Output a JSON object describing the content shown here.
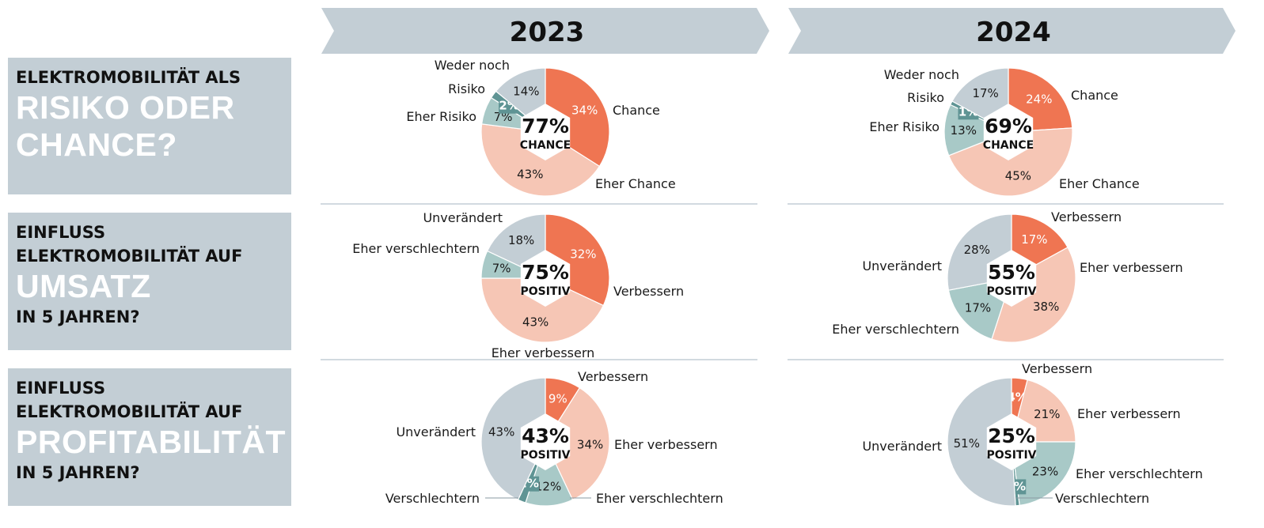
{
  "rows": [
    {
      "line1": "ELEKTROMOBILITÄT ALS",
      "big1": "RISIKO ODER",
      "big2": "CHANCE?"
    },
    {
      "line1": "EINFLUSS",
      "line2": "ELEKTROMOBILITÄT AUF",
      "big": "UMSATZ",
      "line3": "IN 5 JAHREN?"
    },
    {
      "line1": "EINFLUSS",
      "line2": "ELEKTROMOBILITÄT AUF",
      "big": "PROFITABILITÄT",
      "line3": "IN 5 JAHREN?"
    }
  ],
  "colors": {
    "header_band": "#c3ced5",
    "row_box": "#c3ced5",
    "divider": "#c3ced5",
    "strong_positive": "#ef7552",
    "weak_positive": "#f6c6b5",
    "neutral": "#c3ced5",
    "weak_negative": "#a8c9c7",
    "strong_negative": "#5f9494"
  },
  "chart_data": [
    {
      "type": "pie",
      "year": "2023",
      "topic": "Risiko oder Chance",
      "center_value": "77%",
      "center_label": "CHANCE",
      "slices": [
        {
          "label": "Chance",
          "value": 34,
          "value_label": "34%",
          "color": "#ef7552"
        },
        {
          "label": "Eher Chance",
          "value": 43,
          "value_label": "43%",
          "color": "#f6c6b5"
        },
        {
          "label": "Eher Risiko",
          "value": 7,
          "value_label": "7%",
          "color": "#a8c9c7"
        },
        {
          "label": "Risiko",
          "value": 2,
          "value_label": "2%",
          "color": "#5f9494"
        },
        {
          "label": "Weder noch",
          "value": 14,
          "value_label": "14%",
          "color": "#c3ced5"
        }
      ]
    },
    {
      "type": "pie",
      "year": "2024",
      "topic": "Risiko oder Chance",
      "center_value": "69%",
      "center_label": "CHANCE",
      "slices": [
        {
          "label": "Chance",
          "value": 24,
          "value_label": "24%",
          "color": "#ef7552"
        },
        {
          "label": "Eher Chance",
          "value": 45,
          "value_label": "45%",
          "color": "#f6c6b5"
        },
        {
          "label": "Eher Risiko",
          "value": 13,
          "value_label": "13%",
          "color": "#a8c9c7"
        },
        {
          "label": "Risiko",
          "value": 1,
          "value_label": "1%",
          "color": "#5f9494"
        },
        {
          "label": "Weder noch",
          "value": 17,
          "value_label": "17%",
          "color": "#c3ced5"
        }
      ]
    },
    {
      "type": "pie",
      "year": "2023",
      "topic": "Umsatz",
      "center_value": "75%",
      "center_label": "POSITIV",
      "slices": [
        {
          "label": "Verbessern",
          "value": 32,
          "value_label": "32%",
          "color": "#ef7552"
        },
        {
          "label": "Eher verbessern",
          "value": 43,
          "value_label": "43%",
          "color": "#f6c6b5"
        },
        {
          "label": "Eher verschlechtern",
          "value": 7,
          "value_label": "7%",
          "color": "#a8c9c7"
        },
        {
          "label": "Unverändert",
          "value": 18,
          "value_label": "18%",
          "color": "#c3ced5"
        }
      ]
    },
    {
      "type": "pie",
      "year": "2024",
      "topic": "Umsatz",
      "center_value": "55%",
      "center_label": "POSITIV",
      "slices": [
        {
          "label": "Verbessern",
          "value": 17,
          "value_label": "17%",
          "color": "#ef7552"
        },
        {
          "label": "Eher verbessern",
          "value": 38,
          "value_label": "38%",
          "color": "#f6c6b5"
        },
        {
          "label": "Eher verschlechtern",
          "value": 17,
          "value_label": "17%",
          "color": "#a8c9c7"
        },
        {
          "label": "Unverändert",
          "value": 28,
          "value_label": "28%",
          "color": "#c3ced5"
        }
      ]
    },
    {
      "type": "pie",
      "year": "2023",
      "topic": "Profitabilität",
      "center_value": "43%",
      "center_label": "POSITIV",
      "slices": [
        {
          "label": "Verbessern",
          "value": 9,
          "value_label": "9%",
          "color": "#ef7552"
        },
        {
          "label": "Eher verbessern",
          "value": 34,
          "value_label": "34%",
          "color": "#f6c6b5"
        },
        {
          "label": "Eher verschlechtern",
          "value": 12,
          "value_label": "12%",
          "color": "#a8c9c7"
        },
        {
          "label": "Verschlechtern",
          "value": 2,
          "value_label": "2%",
          "color": "#5f9494"
        },
        {
          "label": "Unverändert",
          "value": 43,
          "value_label": "43%",
          "color": "#c3ced5"
        }
      ]
    },
    {
      "type": "pie",
      "year": "2024",
      "topic": "Profitabilität",
      "center_value": "25%",
      "center_label": "POSITIV",
      "slices": [
        {
          "label": "Verbessern",
          "value": 4,
          "value_label": "4%",
          "color": "#ef7552"
        },
        {
          "label": "Eher verbessern",
          "value": 21,
          "value_label": "21%",
          "color": "#f6c6b5"
        },
        {
          "label": "Eher verschlechtern",
          "value": 23,
          "value_label": "23%",
          "color": "#a8c9c7"
        },
        {
          "label": "Verschlechtern",
          "value": 1,
          "value_label": "1%",
          "color": "#5f9494"
        },
        {
          "label": "Unverändert",
          "value": 51,
          "value_label": "51%",
          "color": "#c3ced5"
        }
      ]
    }
  ]
}
